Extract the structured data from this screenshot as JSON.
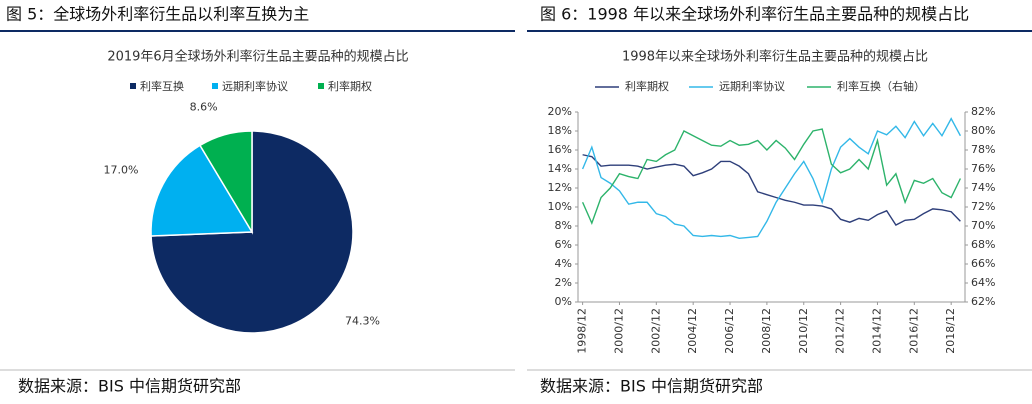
{
  "chart_data": [
    {
      "type": "pie",
      "caption": "图 5：全球场外利率衍生品以利率互换为主",
      "title": "2019年6月全球场外利率衍生品主要品种的规模占比",
      "categories": [
        "利率互换",
        "远期利率协议",
        "利率期权"
      ],
      "values": [
        74.3,
        17.0,
        8.6
      ],
      "value_labels": [
        "74.3%",
        "17.0%",
        "8.6%"
      ],
      "colors": [
        "#0d2a63",
        "#00b0f0",
        "#00b050"
      ],
      "source": "数据来源：BIS 中信期货研究部"
    },
    {
      "type": "line",
      "caption": "图 6：1998 年以来全球场外利率衍生品主要品种的规模占比",
      "title": "1998年以来全球场外利率衍生品主要品种的规模占比",
      "categories": [
        "1998/12",
        null,
        null,
        null,
        "2000/12",
        null,
        null,
        null,
        "2002/12",
        null,
        null,
        null,
        "2004/12",
        null,
        null,
        null,
        "2006/12",
        null,
        null,
        null,
        "2008/12",
        null,
        null,
        null,
        "2010/12",
        null,
        null,
        null,
        "2012/12",
        null,
        null,
        null,
        "2014/12",
        null,
        null,
        null,
        "2016/12",
        null,
        null,
        null,
        "2018/12",
        null
      ],
      "series": [
        {
          "name": "利率期权",
          "color": "#2e3f7a",
          "values": [
            15.5,
            15.3,
            14.3,
            14.4,
            14.4,
            14.4,
            14.3,
            14.0,
            14.2,
            14.4,
            14.5,
            14.3,
            13.3,
            13.6,
            14.0,
            14.8,
            14.8,
            14.3,
            13.5,
            11.6,
            11.3,
            11.0,
            10.7,
            10.5,
            10.2,
            10.2,
            10.1,
            9.8,
            8.7,
            8.4,
            8.8,
            8.6,
            9.2,
            9.6,
            8.1,
            8.6,
            8.7,
            9.3,
            9.8,
            9.7,
            9.5,
            8.5
          ]
        },
        {
          "name": "远期利率协议",
          "color": "#33b8e8",
          "values": [
            14.0,
            16.3,
            13.1,
            12.5,
            11.7,
            10.3,
            10.5,
            10.5,
            9.3,
            9.0,
            8.2,
            8.0,
            7.0,
            6.9,
            7.0,
            6.9,
            7.0,
            6.7,
            6.8,
            6.9,
            8.5,
            10.5,
            12.0,
            13.5,
            14.8,
            13.0,
            10.5,
            14.0,
            16.3,
            17.2,
            16.3,
            15.6,
            18.0,
            17.6,
            18.5,
            17.3,
            19.0,
            17.5,
            18.8,
            17.5,
            19.3,
            17.5
          ]
        },
        {
          "name": "利率互换（右轴）",
          "color": "#2db36b",
          "axis": "y2",
          "values": [
            72.5,
            70.3,
            73.0,
            74.0,
            75.5,
            75.2,
            75.0,
            77.0,
            76.8,
            77.5,
            78.0,
            80.0,
            79.5,
            79.0,
            78.5,
            78.4,
            79.0,
            78.5,
            78.6,
            79.0,
            78.0,
            79.0,
            78.2,
            77.0,
            78.6,
            80.0,
            80.2,
            76.5,
            75.6,
            76.0,
            77.0,
            76.0,
            79.0,
            74.3,
            75.5,
            72.5,
            74.8,
            74.5,
            75.0,
            73.5,
            73.0,
            75.0
          ]
        }
      ],
      "ylim": [
        0,
        20
      ],
      "yticks": [
        {
          "value": 0,
          "label": "0%"
        },
        {
          "value": 2,
          "label": "2%"
        },
        {
          "value": 4,
          "label": "4%"
        },
        {
          "value": 6,
          "label": "6%"
        },
        {
          "value": 8,
          "label": "8%"
        },
        {
          "value": 10,
          "label": "10%"
        },
        {
          "value": 12,
          "label": "12%"
        },
        {
          "value": 14,
          "label": "14%"
        },
        {
          "value": 16,
          "label": "16%"
        },
        {
          "value": 18,
          "label": "18%"
        },
        {
          "value": 20,
          "label": "20%"
        }
      ],
      "y2lim": [
        62,
        82
      ],
      "y2ticks": [
        {
          "value": 62,
          "label": "62%"
        },
        {
          "value": 64,
          "label": "64%"
        },
        {
          "value": 66,
          "label": "66%"
        },
        {
          "value": 68,
          "label": "68%"
        },
        {
          "value": 70,
          "label": "70%"
        },
        {
          "value": 72,
          "label": "72%"
        },
        {
          "value": 74,
          "label": "74%"
        },
        {
          "value": 76,
          "label": "76%"
        },
        {
          "value": 78,
          "label": "78%"
        },
        {
          "value": 80,
          "label": "80%"
        },
        {
          "value": 82,
          "label": "82%"
        }
      ],
      "source": "数据来源：BIS 中信期货研究部"
    }
  ]
}
